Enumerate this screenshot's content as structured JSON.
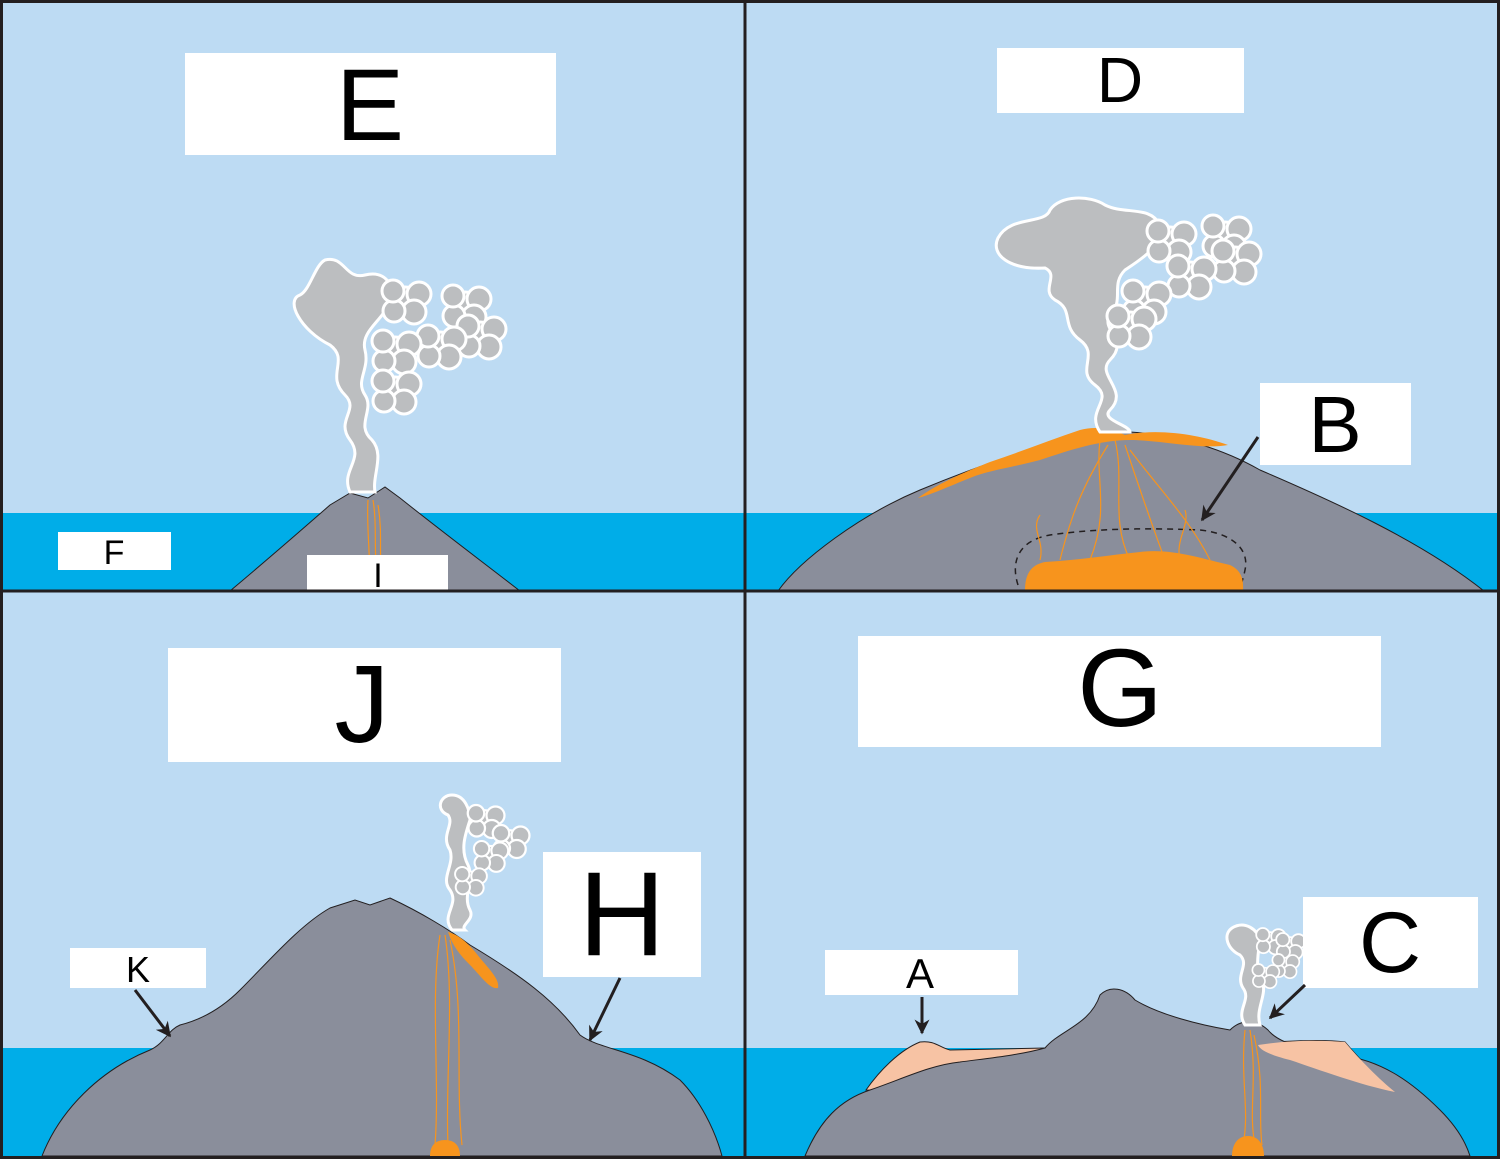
{
  "colors": {
    "sky": "#bddbf3",
    "sea": "#00ade8",
    "rock": "#8a8e9b",
    "lava": "#f7941d",
    "pale_lava": "#f7c3a4",
    "smoke": "#bcbec0",
    "frame": "#231f20"
  },
  "panels": {
    "top_left": {
      "title": "E",
      "labels": {
        "f": "F",
        "i": "I"
      }
    },
    "top_right": {
      "title": "D",
      "labels": {
        "b": "B"
      }
    },
    "bottom_left": {
      "title": "J",
      "labels": {
        "h": "H",
        "k": "K"
      }
    },
    "bottom_right": {
      "title": "G",
      "labels": {
        "a": "A",
        "c": "C"
      }
    }
  }
}
